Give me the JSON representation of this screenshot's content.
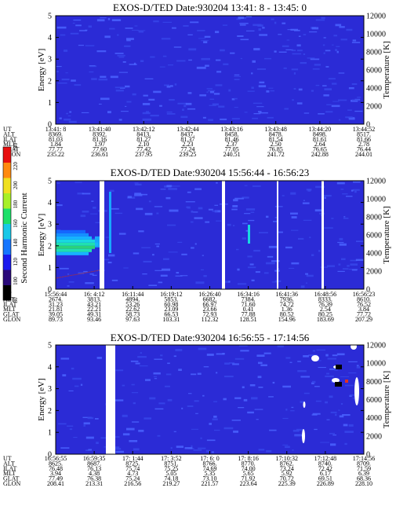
{
  "panels": [
    {
      "title": "EXOS-D/TED   Date:930204  13:41: 8 - 13:45: 0",
      "ylabel_left": "Energy [eV]",
      "ylabel_right": "Temperature [K]",
      "y_ticks_left": [
        "0",
        "1",
        "2",
        "3",
        "4",
        "5"
      ],
      "y_ticks_right": [
        "0",
        "2000",
        "4000",
        "6000",
        "8000",
        "10000",
        "12000"
      ],
      "row_labels": [
        "UT",
        "ALT",
        "ILAT",
        "MLT",
        "GLAT",
        "GLON"
      ],
      "columns": [
        [
          "13:41: 8",
          "8369.",
          "81.03",
          "1.84",
          "77.77",
          "235.22"
        ],
        [
          "13:41:40",
          "8392.",
          "81.16",
          "1.97",
          "77.60",
          "236.61"
        ],
        [
          "13:42:12",
          "8413.",
          "81.27",
          "2.10",
          "77.42",
          "237.95"
        ],
        [
          "13:42:44",
          "8437.",
          "81.37",
          "2.23",
          "77.24",
          "239.25"
        ],
        [
          "13:43:16",
          "8458.",
          "81.46",
          "2.37",
          "77.05",
          "240.51"
        ],
        [
          "13:43:48",
          "8478.",
          "81.54",
          "2.50",
          "76.85",
          "241.72"
        ],
        [
          "13:44:20",
          "8498.",
          "81.61",
          "2.64",
          "76.65",
          "242.88"
        ],
        [
          "13:44:52",
          "8517.",
          "81.66",
          "2.78",
          "76.44",
          "244.01"
        ]
      ]
    },
    {
      "title": "EXOS-D/TED   Date:930204  15:56:44 - 16:56:23",
      "ylabel_left": "Energy [eV]",
      "ylabel_right": "Temperature [K]",
      "y_ticks_left": [
        "0",
        "1",
        "2",
        "3",
        "4",
        "5"
      ],
      "y_ticks_right": [
        "0",
        "2000",
        "4000",
        "6000",
        "8000",
        "10000",
        "12000"
      ],
      "row_labels": [
        "UT",
        "ALT",
        "ILAT",
        "MLT",
        "GLAT",
        "GLON"
      ],
      "columns": [
        [
          "15:56:44",
          "2674.",
          "31.23",
          "21.81",
          "39.05",
          "89.73"
        ],
        [
          "16: 4:12",
          "3813.",
          "43.21",
          "22.21",
          "49.31",
          "93.46"
        ],
        [
          "16:11:44",
          "4894.",
          "53.26",
          "22.62",
          "58.73",
          "97.63"
        ],
        [
          "16:19:12",
          "5853.",
          "60.98",
          "23.09",
          "66.53",
          "103.31"
        ],
        [
          "16:26:40",
          "6682.",
          "66.97",
          "23.66",
          "72.93",
          "112.32"
        ],
        [
          "16:34:16",
          "7384.",
          "71.60",
          "0.41",
          "77.88",
          "128.51"
        ],
        [
          "16:41:36",
          "7936.",
          "74.72",
          "1.36",
          "80.52",
          "154.96"
        ],
        [
          "16:48:56",
          "8333.",
          "76.39",
          "2.54",
          "80.25",
          "183.69"
        ],
        [
          "16:56:23",
          "8610.",
          "76.52",
          "3.84",
          "77.72",
          "207.29"
        ]
      ],
      "colorbar": {
        "label": "Second Harmonic Current",
        "ticks": [
          "80",
          "100",
          "120",
          "140",
          "160",
          "180",
          "200",
          "220",
          "240"
        ]
      }
    },
    {
      "title": "EXOS-D/TED   Date:930204  16:56:55 - 17:14:56",
      "ylabel_left": "Energy [eV]",
      "ylabel_right": "Temperature [K]",
      "y_ticks_left": [
        "0",
        "1",
        "2",
        "3",
        "4",
        "5"
      ],
      "y_ticks_right": [
        "0",
        "2000",
        "4000",
        "6000",
        "8000",
        "10000",
        "12000"
      ],
      "row_labels": [
        "UT",
        "ALT",
        "ILAT",
        "MLT",
        "GLAT",
        "GLON"
      ],
      "columns": [
        [
          "16:56:55",
          "8625.",
          "76.48",
          "3.94",
          "77.49",
          "208.41"
        ],
        [
          "16:59:35",
          "8687.",
          "76.13",
          "4.38",
          "76.38",
          "213.31"
        ],
        [
          "17: 1:44",
          "8725.",
          "75.74",
          "4.73",
          "75.24",
          "216.56"
        ],
        [
          "17: 3:52",
          "8751.",
          "75.25",
          "5.05",
          "74.18",
          "219.27"
        ],
        [
          "17: 6: 0",
          "8766.",
          "74.69",
          "5.35",
          "73.10",
          "221.57"
        ],
        [
          "17: 8:16",
          "8770.",
          "74.00",
          "5.65",
          "71.92",
          "223.64"
        ],
        [
          "17:10:32",
          "8762.",
          "73.24",
          "5.92",
          "70.72",
          "225.39"
        ],
        [
          "17:12:48",
          "8740.",
          "72.42",
          "6.17",
          "69.51",
          "226.89"
        ],
        [
          "17:14:56",
          "8709.",
          "71.59",
          "6.39",
          "68.36",
          "228.10"
        ]
      ]
    }
  ],
  "colors": {
    "background": "#2b2bd6",
    "weak": "#3d4cf0",
    "green": "#2ad27a",
    "cyan": "#18d8e0",
    "gap": "#ffffff"
  },
  "chart_data": [
    {
      "type": "heatmap",
      "title": "EXOS-D/TED   Date:930204  13:41: 8 - 13:45: 0",
      "ylabel": "Energy [eV]",
      "y2label": "Temperature [K]",
      "ylim": [
        0,
        5
      ],
      "y2lim": [
        0,
        12000
      ],
      "x_start": "13:41: 8",
      "x_end": "13:45: 0",
      "colorbar_label": "Second Harmonic Current",
      "colorbar_range": [
        80,
        240
      ]
    },
    {
      "type": "heatmap",
      "title": "EXOS-D/TED   Date:930204  15:56:44 - 16:56:23",
      "ylabel": "Energy [eV]",
      "y2label": "Temperature [K]",
      "ylim": [
        0,
        5
      ],
      "y2lim": [
        0,
        12000
      ],
      "x_start": "15:56:44",
      "x_end": "16:56:23",
      "colorbar_label": "Second Harmonic Current",
      "colorbar_range": [
        80,
        240
      ]
    },
    {
      "type": "heatmap",
      "title": "EXOS-D/TED   Date:930204  16:56:55 - 17:14:56",
      "ylabel": "Energy [eV]",
      "y2label": "Temperature [K]",
      "ylim": [
        0,
        5
      ],
      "y2lim": [
        0,
        12000
      ],
      "x_start": "16:56:55",
      "x_end": "17:14:56",
      "colorbar_label": "Second Harmonic Current",
      "colorbar_range": [
        80,
        240
      ]
    }
  ]
}
